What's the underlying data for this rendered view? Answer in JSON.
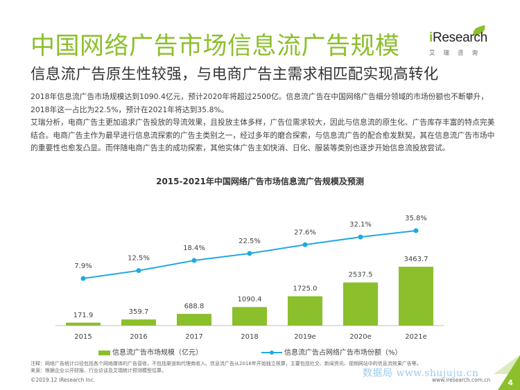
{
  "header": {
    "title": "中国网络广告市场信息流广告规模",
    "subtitle": "信息流广告原生性较强，与电商广告主需求相匹配实现高转化",
    "logo_text": "iResearch",
    "logo_cn": "艾瑞咨询"
  },
  "body": {
    "paragraph1": "2018年信息流广告市场规模达到1090.4亿元，预计2020年将超过2500亿。信息流广告在中国网络广告细分领域的市场份额也不断攀升，2018年这一占比为22.5%，预计在2021年将达到35.8%。",
    "paragraph2": "艾瑞分析，电商广告主更加追求广告投放的导流效果，且投放主体多样，广告位需求较大，因此与信息流的原生化、广告库存丰富的特点完美结合。电商广告主作为最早进行信息流探索的广告主类别之一，经过多年的磨合探索，与信息流广告的配合愈发默契，其在信息流广告市场中的重要性也愈发凸显。而伴随电商广告主的成功探索，其他实体广告主如快消、日化、服装等类别也逐步开始信息流投放尝试。"
  },
  "chart_data": {
    "type": "bar",
    "title": "2015-2021年中国网络广告市场信息流广告规模及预测",
    "categories": [
      "2015",
      "2016",
      "2017",
      "2018",
      "2019e",
      "2020e",
      "2021e"
    ],
    "series": [
      {
        "name": "信息流广告市场规模（亿元）",
        "type": "bar",
        "color": "#8cbf2c",
        "values": [
          171.9,
          359.7,
          688.8,
          1090.4,
          1725.0,
          2537.5,
          3463.7
        ],
        "labels": [
          "171.9",
          "359.7",
          "688.8",
          "1090.4",
          "1725.0",
          "2537.5",
          "3463.7"
        ]
      },
      {
        "name": "信息流广告占网络广告市场份额（%）",
        "type": "line",
        "color": "#1fa9e3",
        "values": [
          7.9,
          12.5,
          18.4,
          22.5,
          27.6,
          32.1,
          35.8
        ],
        "labels": [
          "7.9%",
          "12.5%",
          "18.4%",
          "22.5%",
          "27.6%",
          "32.1%",
          "35.8%"
        ]
      }
    ],
    "bar_axis_range": [
      0,
      3463.7
    ],
    "line_axis_range": [
      7.9,
      35.8
    ],
    "legend_position": "bottom",
    "grid": false
  },
  "footer": {
    "note1": "注释：网络广告统计口径包括各个网络媒体的广告营收，不包括渠道和代理商收入。信息流广告从2016年开始独立核算，主要包括社交、新闻资讯、视频网站中的信息流效果广告等。",
    "note2": "来源：根据企业公开财报、行业访谈及艾瑞统计预测模型估算。",
    "copyright": "©2019.12 iResearch Inc.",
    "website": "www.iresearch.com.cn",
    "watermark": "数据局 www.shujuju.cn",
    "page_number": "4"
  }
}
